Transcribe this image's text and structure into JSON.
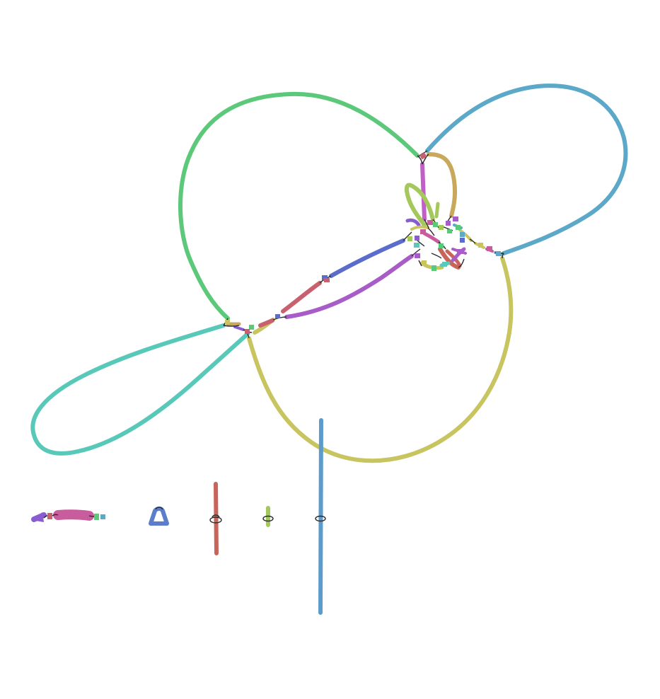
{
  "graph": {
    "kind": "assembly-graph",
    "background": "#ffffff",
    "link_color": "#2b2b2b",
    "palette": {
      "green": "#5cc87a",
      "teal": "#58c8b8",
      "sky": "#5ba8c8",
      "olive": "#c8c460",
      "tan": "#c8a85a",
      "magenta": "#c25ec8",
      "violet": "#8a5cd0",
      "purple": "#a85cc8",
      "indigo": "#5c6ccc",
      "rose": "#c86070",
      "pink": "#c85c9c",
      "lime": "#a4c85c",
      "blue": "#5c9ccc",
      "brick": "#c8645a"
    },
    "components": [
      {
        "id": "main-loop-cluster",
        "segments": 60
      },
      {
        "id": "small-linear-fragment",
        "segments": 6
      },
      {
        "id": "triangle-loop-fragment",
        "segments": 1
      },
      {
        "id": "red-linear-contig",
        "segments": 1
      },
      {
        "id": "lime-short-contig",
        "segments": 1
      },
      {
        "id": "blue-long-contig",
        "segments": 1
      }
    ]
  }
}
